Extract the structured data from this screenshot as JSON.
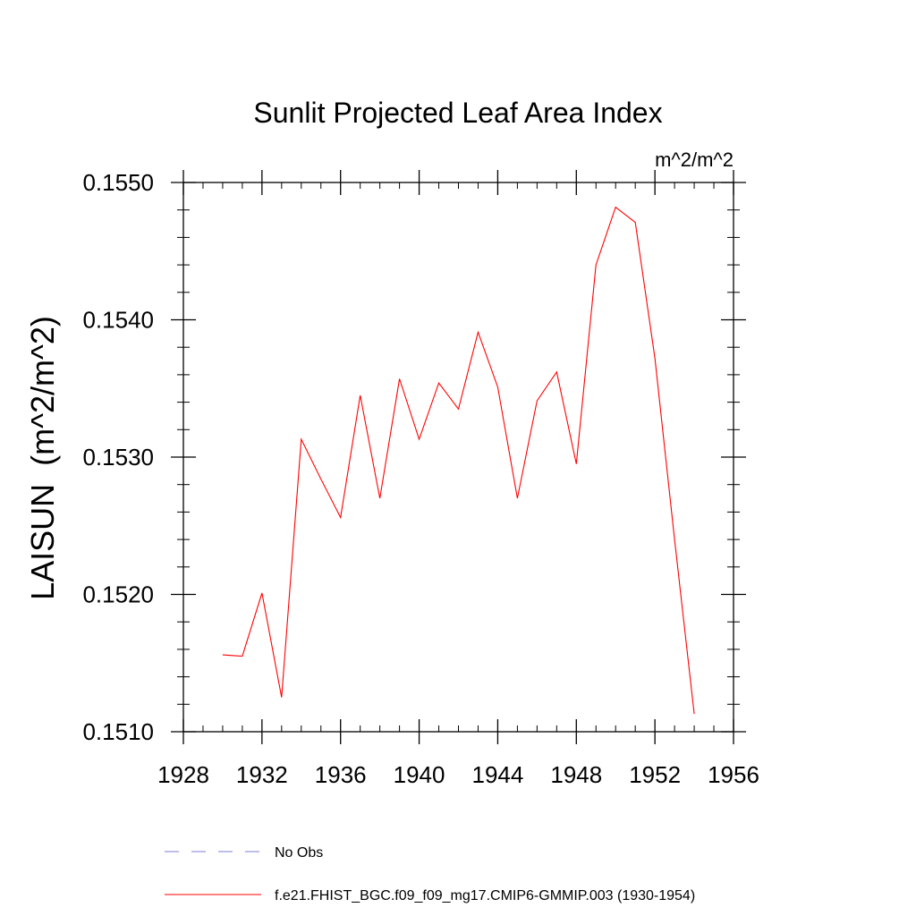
{
  "chart_data": {
    "type": "line",
    "title": "Sunlit Projected Leaf Area Index",
    "units_label": "m^2/m^2",
    "ylabel": "LAISUN  (m^2/m^2)",
    "xlabel": "",
    "xlim": [
      1928,
      1956
    ],
    "ylim": [
      0.151,
      0.155
    ],
    "x_ticks": [
      1928,
      1932,
      1936,
      1940,
      1944,
      1948,
      1952,
      1956
    ],
    "y_ticks": [
      0.151,
      0.152,
      0.153,
      0.154,
      0.155
    ],
    "x_tick_labels": [
      "1928",
      "1932",
      "1936",
      "1940",
      "1944",
      "1948",
      "1952",
      "1956"
    ],
    "y_tick_labels": [
      "0.1510",
      "0.1520",
      "0.1530",
      "0.1540",
      "0.1550"
    ],
    "grid": false,
    "series": [
      {
        "name": "f.e21.FHIST_BGC.f09_f09_mg17.CMIP6-GMMIP.003 (1930-1954)",
        "color": "#ff0000",
        "style": "solid",
        "x": [
          1930,
          1931,
          1932,
          1933,
          1934,
          1935,
          1936,
          1937,
          1938,
          1939,
          1940,
          1941,
          1942,
          1943,
          1944,
          1945,
          1946,
          1947,
          1948,
          1949,
          1950,
          1951,
          1952,
          1953,
          1954
        ],
        "values": [
          0.15156,
          0.15155,
          0.15201,
          0.15125,
          0.15313,
          0.15284,
          0.15256,
          0.15345,
          0.1527,
          0.15357,
          0.15313,
          0.15354,
          0.15335,
          0.15391,
          0.15351,
          0.1527,
          0.15341,
          0.15362,
          0.15295,
          0.1544,
          0.15482,
          0.15471,
          0.15372,
          0.1524,
          0.15113
        ]
      }
    ],
    "legend": {
      "placement": "bottom",
      "entries": [
        {
          "label": "No Obs",
          "color": "#7b7bd6",
          "style": "dashed"
        },
        {
          "label": "f.e21.FHIST_BGC.f09_f09_mg17.CMIP6-GMMIP.003 (1930-1954)",
          "color": "#ff0000",
          "style": "solid"
        }
      ]
    }
  }
}
